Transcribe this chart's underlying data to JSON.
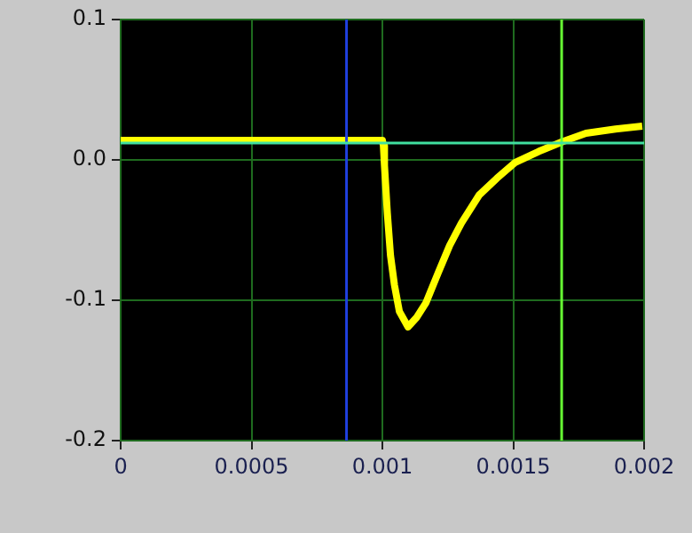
{
  "chart_data": {
    "type": "line",
    "x": [
      0,
      0.0005,
      0.00086,
      0.001,
      0.001004,
      0.001008,
      0.001019,
      0.001031,
      0.001046,
      0.001065,
      0.001098,
      0.001132,
      0.001166,
      0.001212,
      0.001257,
      0.001302,
      0.00137,
      0.001438,
      0.001506,
      0.001597,
      0.001688,
      0.001778,
      0.001891,
      0.001993
    ],
    "series": [
      {
        "color": "#ffff00",
        "values": [
          0.014,
          0.014,
          0.014,
          0.014,
          0.01,
          -0.004,
          -0.038,
          -0.068,
          -0.089,
          -0.108,
          -0.119,
          -0.112,
          -0.102,
          -0.081,
          -0.061,
          -0.045,
          -0.025,
          -0.013,
          -0.002,
          0.006,
          0.013,
          0.019,
          0.022,
          0.024
        ]
      }
    ],
    "xlim": [
      0,
      0.002
    ],
    "xticks": [
      0,
      0.0005,
      0.001,
      0.0015,
      0.002
    ],
    "ylim": [
      -0.2,
      0.1
    ],
    "yticks": [
      -0.2,
      -0.1,
      {
        "value": 0,
        "label": "0.0"
      },
      0.1
    ],
    "grid": true,
    "legend": false,
    "marker": "none",
    "line_style": "solid",
    "ref_lines": [
      {
        "axis": "x",
        "value": 0.000863,
        "color": "#2040e0"
      },
      {
        "axis": "x",
        "value": 0.001685,
        "color": "#66ff33"
      },
      {
        "axis": "y",
        "value": 0.012,
        "color": "#40e0a0"
      }
    ]
  }
}
